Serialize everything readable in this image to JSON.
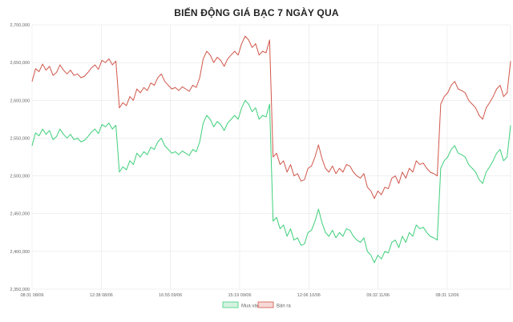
{
  "chart_data": {
    "type": "line",
    "title": "BIẾN ĐỘNG GIÁ BẠC 7 NGÀY QUA",
    "xlabel": "",
    "ylabel": "",
    "ylim": [
      2350000,
      2700000
    ],
    "y_ticks": [
      "2,700,000",
      "2,650,000",
      "2,600,000",
      "2,550,000",
      "2,500,000",
      "2,450,000",
      "2,400,000",
      "2,350,000"
    ],
    "x_ticks": [
      "08:31 08/06",
      "12:38 08/06",
      "16:55 09/06",
      "15:19 09/06",
      "12:06 10/06",
      "09:32 11/06",
      "08:31 12/06"
    ],
    "grid": true,
    "legend_position": "bottom",
    "colors": {
      "mua": "#3ecf7a",
      "ban": "#d1564a",
      "mua_fill": "#d5f2e1",
      "ban_fill": "#f6d9d6",
      "grid": "#e6e6e6"
    },
    "series": [
      {
        "name": "Mua vào",
        "key": "mua",
        "values": [
          2540000,
          2557000,
          2553000,
          2562000,
          2555000,
          2560000,
          2548000,
          2552000,
          2562000,
          2555000,
          2550000,
          2555000,
          2548000,
          2550000,
          2545000,
          2547000,
          2552000,
          2558000,
          2562000,
          2556000,
          2568000,
          2565000,
          2570000,
          2562000,
          2567000,
          2505000,
          2512000,
          2508000,
          2520000,
          2515000,
          2530000,
          2525000,
          2532000,
          2528000,
          2538000,
          2535000,
          2545000,
          2550000,
          2540000,
          2535000,
          2530000,
          2532000,
          2528000,
          2533000,
          2530000,
          2527000,
          2535000,
          2532000,
          2545000,
          2570000,
          2580000,
          2575000,
          2565000,
          2572000,
          2568000,
          2560000,
          2570000,
          2575000,
          2580000,
          2575000,
          2590000,
          2600000,
          2595000,
          2585000,
          2590000,
          2575000,
          2580000,
          2578000,
          2595000,
          2440000,
          2445000,
          2430000,
          2435000,
          2420000,
          2430000,
          2415000,
          2418000,
          2408000,
          2410000,
          2425000,
          2428000,
          2440000,
          2456000,
          2438000,
          2425000,
          2420000,
          2428000,
          2418000,
          2425000,
          2420000,
          2430000,
          2428000,
          2420000,
          2415000,
          2412000,
          2418000,
          2400000,
          2395000,
          2385000,
          2395000,
          2390000,
          2400000,
          2398000,
          2412000,
          2415000,
          2405000,
          2420000,
          2412000,
          2425000,
          2420000,
          2435000,
          2430000,
          2432000,
          2425000,
          2420000,
          2418000,
          2415000,
          2510000,
          2520000,
          2525000,
          2535000,
          2540000,
          2530000,
          2528000,
          2525000,
          2515000,
          2510000,
          2505000,
          2495000,
          2490000,
          2505000,
          2512000,
          2520000,
          2530000,
          2535000,
          2520000,
          2525000,
          2567000
        ]
      },
      {
        "name": "Bán ra",
        "key": "ban",
        "values": [
          2625000,
          2642000,
          2638000,
          2648000,
          2640000,
          2645000,
          2633000,
          2637000,
          2647000,
          2640000,
          2635000,
          2640000,
          2633000,
          2635000,
          2630000,
          2632000,
          2637000,
          2643000,
          2647000,
          2641000,
          2653000,
          2650000,
          2655000,
          2647000,
          2652000,
          2590000,
          2597000,
          2593000,
          2605000,
          2600000,
          2615000,
          2610000,
          2617000,
          2613000,
          2623000,
          2620000,
          2630000,
          2635000,
          2625000,
          2620000,
          2615000,
          2617000,
          2613000,
          2618000,
          2615000,
          2612000,
          2620000,
          2617000,
          2630000,
          2655000,
          2665000,
          2660000,
          2650000,
          2657000,
          2653000,
          2645000,
          2655000,
          2660000,
          2665000,
          2660000,
          2675000,
          2685000,
          2680000,
          2670000,
          2675000,
          2660000,
          2665000,
          2663000,
          2680000,
          2525000,
          2530000,
          2515000,
          2520000,
          2505000,
          2515000,
          2500000,
          2503000,
          2493000,
          2495000,
          2510000,
          2513000,
          2525000,
          2541000,
          2523000,
          2510000,
          2505000,
          2513000,
          2503000,
          2510000,
          2505000,
          2515000,
          2513000,
          2505000,
          2500000,
          2497000,
          2503000,
          2485000,
          2480000,
          2470000,
          2480000,
          2475000,
          2485000,
          2483000,
          2497000,
          2500000,
          2490000,
          2505000,
          2497000,
          2510000,
          2505000,
          2520000,
          2515000,
          2517000,
          2510000,
          2505000,
          2503000,
          2500000,
          2595000,
          2605000,
          2610000,
          2620000,
          2625000,
          2615000,
          2613000,
          2610000,
          2600000,
          2595000,
          2590000,
          2580000,
          2575000,
          2590000,
          2597000,
          2605000,
          2615000,
          2620000,
          2605000,
          2610000,
          2652000
        ]
      }
    ]
  }
}
